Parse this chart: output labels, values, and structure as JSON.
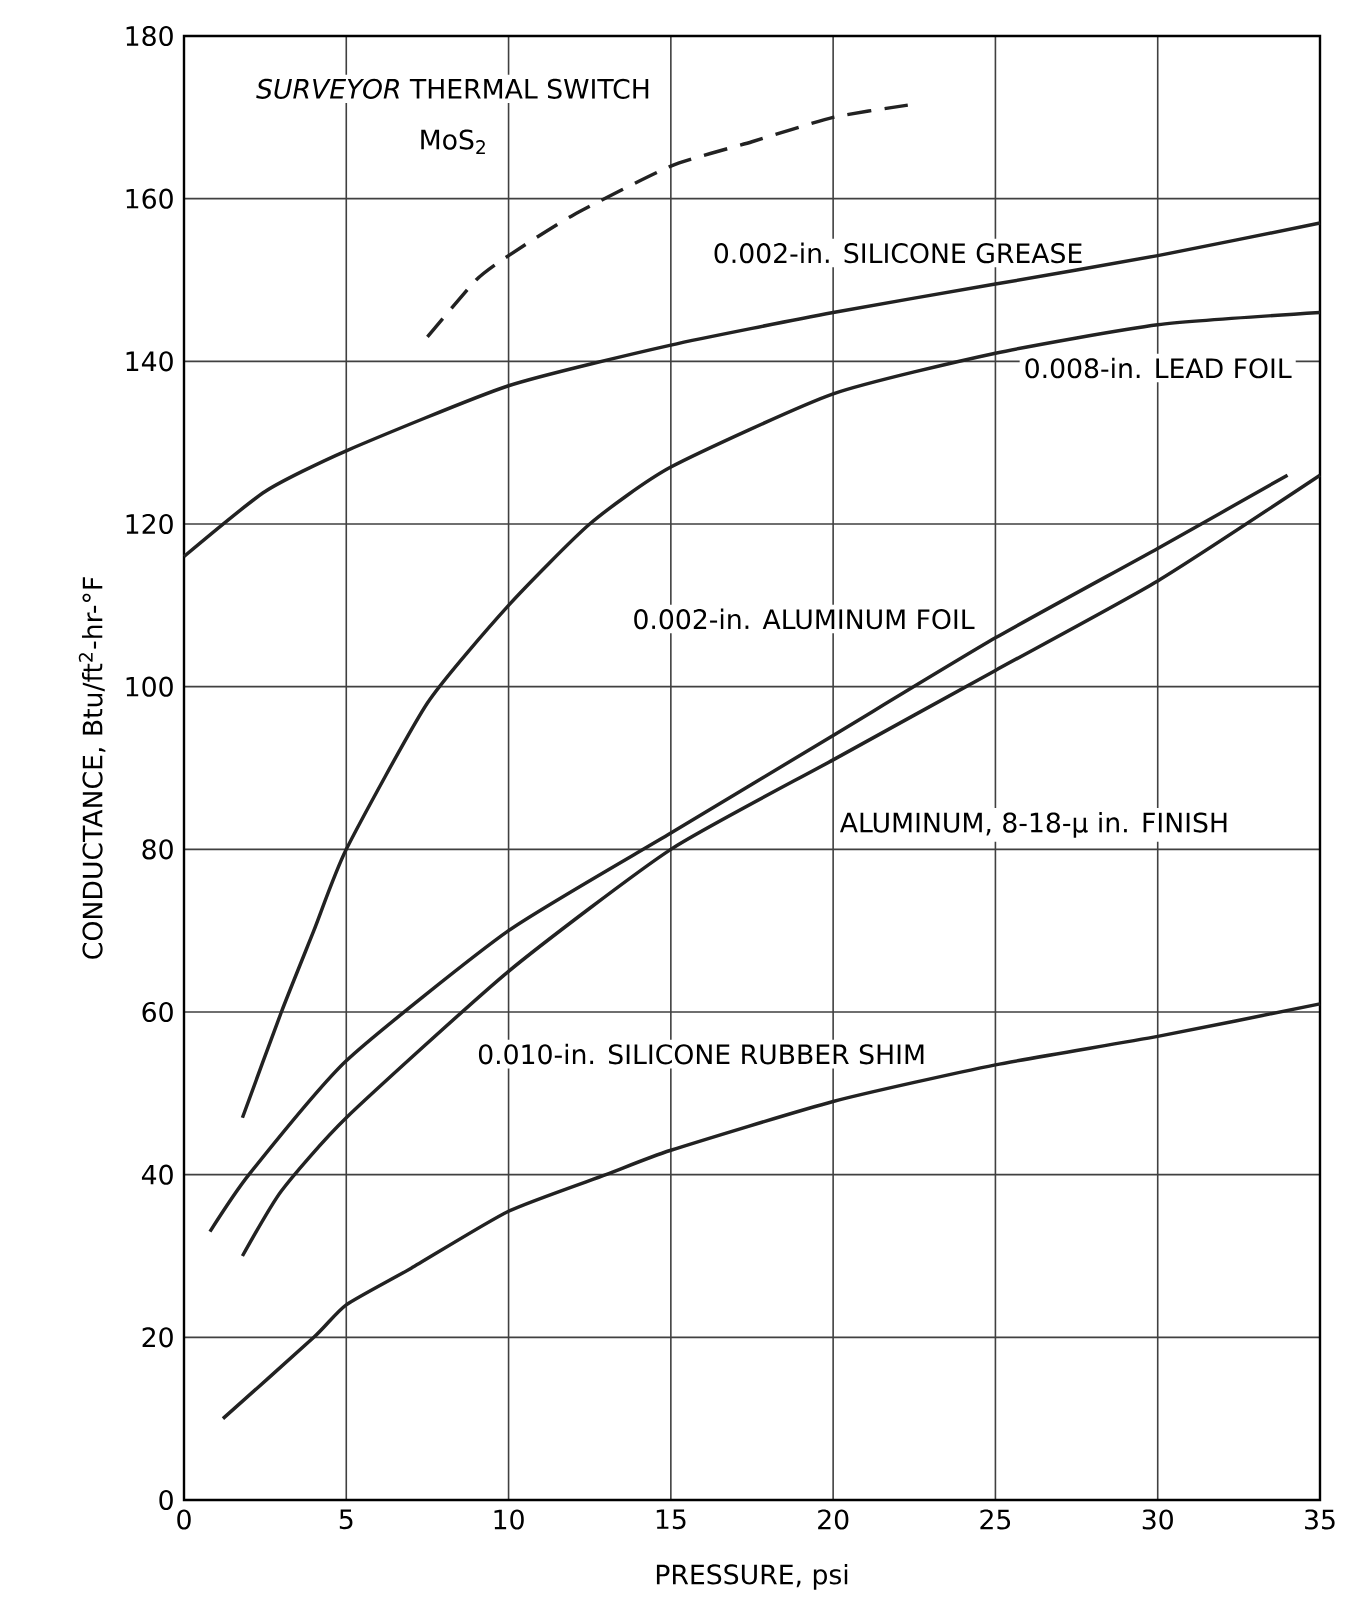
{
  "chart_data": {
    "type": "line",
    "xlabel": "PRESSURE, psi",
    "ylabel": "CONDUCTANCE, Btu/ft$^{2}$-hr-°F",
    "xlim": [
      0,
      35
    ],
    "ylim": [
      0,
      180
    ],
    "xticks": [
      0,
      5,
      10,
      15,
      20,
      25,
      30,
      35
    ],
    "yticks": [
      0,
      20,
      40,
      60,
      80,
      100,
      120,
      140,
      160,
      180
    ],
    "grid": true,
    "annotations": [
      "MoS$_{2}$"
    ],
    "series": [
      {
        "name": "*SURVEYOR* THERMAL SWITCH",
        "color": "#222222",
        "line_style": "dashed",
        "x": [
          7.5,
          9,
          10,
          12,
          15,
          17.5,
          20,
          22.3
        ],
        "values": [
          143,
          150,
          153,
          158,
          164,
          167,
          170,
          171.5
        ]
      },
      {
        "name": "0.002-in. SILICONE GREASE",
        "color": "#222222",
        "x": [
          0,
          2.5,
          5,
          10,
          15,
          20,
          25,
          30,
          35
        ],
        "values": [
          116,
          124,
          129,
          137,
          142,
          146,
          149.5,
          153,
          157
        ]
      },
      {
        "name": "0.008-in. LEAD FOIL",
        "color": "#222222",
        "x": [
          1.8,
          3,
          4,
          5,
          7.5,
          10,
          12.5,
          15,
          20,
          25,
          30,
          35
        ],
        "values": [
          47,
          60,
          70,
          80,
          98,
          110,
          120,
          127,
          136,
          141,
          144.5,
          146
        ]
      },
      {
        "name": "0.002-in. ALUMINUM FOIL",
        "color": "#222222",
        "x": [
          0.8,
          2,
          5,
          10,
          15,
          20,
          25,
          30,
          34
        ],
        "values": [
          33,
          40,
          54,
          70,
          82,
          94,
          106,
          117,
          126
        ]
      },
      {
        "name": "ALUMINUM, 8-18-μ in. FINISH",
        "color": "#222222",
        "x": [
          1.8,
          3,
          5,
          10,
          15,
          20,
          25,
          30,
          35
        ],
        "values": [
          30,
          38,
          47,
          65,
          80,
          91,
          102,
          113,
          126
        ]
      },
      {
        "name": "0.010-in. SILICONE RUBBER SHIM",
        "color": "#222222",
        "x": [
          1.2,
          4,
          5,
          7,
          10,
          13,
          15,
          20,
          25,
          30,
          35
        ],
        "values": [
          10,
          20,
          24,
          28.5,
          35.5,
          40,
          43,
          49,
          53.5,
          57,
          61
        ]
      }
    ]
  }
}
